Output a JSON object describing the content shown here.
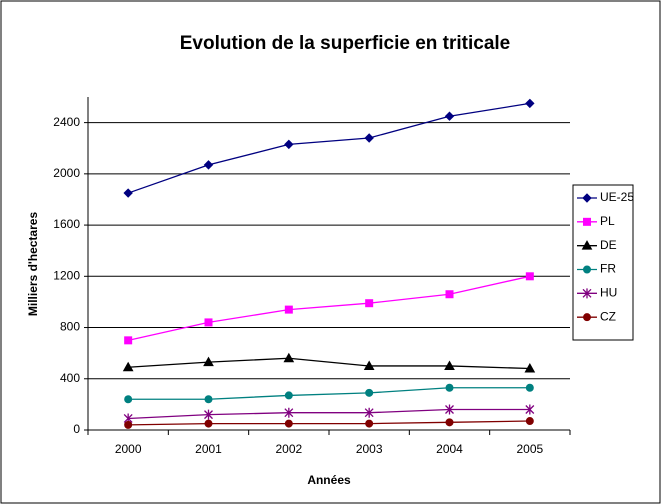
{
  "chart_data": {
    "type": "line",
    "title": "Evolution de la superficie en triticale",
    "x_label": "Années",
    "y_label": "Milliers d'hectares",
    "categories": [
      "2000",
      "2001",
      "2002",
      "2003",
      "2004",
      "2005"
    ],
    "series": [
      {
        "name": "UE-25",
        "color": "#000080",
        "marker": "diamond",
        "values": [
          1850,
          2070,
          2230,
          2280,
          2450,
          2550
        ]
      },
      {
        "name": "PL",
        "color": "#ff00ff",
        "marker": "square",
        "values": [
          700,
          840,
          940,
          990,
          1060,
          1200
        ]
      },
      {
        "name": "DE",
        "color": "#000000",
        "marker": "triangle",
        "values": [
          490,
          530,
          560,
          500,
          500,
          480
        ]
      },
      {
        "name": "FR",
        "color": "#008080",
        "marker": "circle",
        "values": [
          240,
          240,
          270,
          290,
          330,
          330
        ]
      },
      {
        "name": "HU",
        "color": "#800080",
        "marker": "asterisk",
        "values": [
          90,
          120,
          135,
          135,
          160,
          160
        ]
      },
      {
        "name": "CZ",
        "color": "#800000",
        "marker": "circle",
        "values": [
          40,
          50,
          50,
          50,
          60,
          70
        ]
      }
    ],
    "ylim": [
      0,
      2600
    ],
    "yticks": [
      0,
      400,
      800,
      1200,
      1600,
      2000,
      2400
    ],
    "grid": true,
    "legend": "right"
  }
}
